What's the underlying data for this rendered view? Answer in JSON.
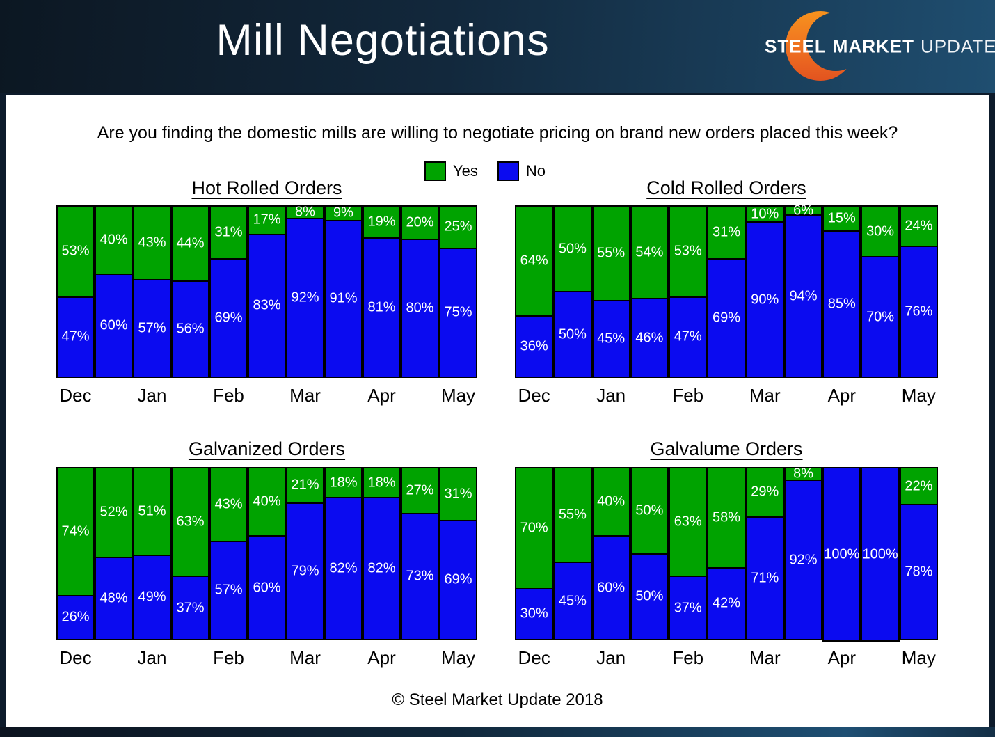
{
  "header": {
    "title": "Mill Negotiations",
    "logo": {
      "steel": "STEEL",
      "market": "MARKET",
      "update": "UPDATE"
    }
  },
  "question": "Are you finding the domestic mills are willing to negotiate pricing on brand new orders placed this week?",
  "legend": {
    "yes_label": "Yes",
    "no_label": "No"
  },
  "colors": {
    "yes": "#00a300",
    "no": "#0b0bf0",
    "bar_border": "#000000",
    "header_dark": "#0c1722",
    "header_light": "#1f4e70",
    "crescent_top": "#f6921e",
    "crescent_bottom": "#e2531f"
  },
  "months": [
    "Dec",
    "Jan",
    "Feb",
    "Mar",
    "Apr",
    "May"
  ],
  "footer": "© Steel Market Update 2018",
  "chart_data": [
    {
      "type": "bar",
      "stacked": true,
      "title": "Hot Rolled Orders",
      "x_axis_labels": [
        "Dec",
        "Jan",
        "Feb",
        "Mar",
        "Apr",
        "May"
      ],
      "bars": 11,
      "unit": "%",
      "ylim": [
        0,
        100
      ],
      "series": [
        {
          "name": "Yes",
          "color": "#00a300",
          "values": [
            53,
            40,
            43,
            44,
            31,
            17,
            8,
            9,
            19,
            20,
            25
          ]
        },
        {
          "name": "No",
          "color": "#0b0bf0",
          "values": [
            47,
            60,
            57,
            56,
            69,
            83,
            92,
            91,
            81,
            80,
            75
          ]
        }
      ]
    },
    {
      "type": "bar",
      "stacked": true,
      "title": "Cold Rolled Orders",
      "x_axis_labels": [
        "Dec",
        "Jan",
        "Feb",
        "Mar",
        "Apr",
        "May"
      ],
      "bars": 11,
      "unit": "%",
      "ylim": [
        0,
        100
      ],
      "series": [
        {
          "name": "Yes",
          "color": "#00a300",
          "values": [
            64,
            50,
            55,
            54,
            53,
            31,
            10,
            6,
            15,
            30,
            24
          ]
        },
        {
          "name": "No",
          "color": "#0b0bf0",
          "values": [
            36,
            50,
            45,
            46,
            47,
            69,
            90,
            94,
            85,
            70,
            76
          ]
        }
      ]
    },
    {
      "type": "bar",
      "stacked": true,
      "title": "Galvanized Orders",
      "x_axis_labels": [
        "Dec",
        "Jan",
        "Feb",
        "Mar",
        "Apr",
        "May"
      ],
      "bars": 11,
      "unit": "%",
      "ylim": [
        0,
        100
      ],
      "series": [
        {
          "name": "Yes",
          "color": "#00a300",
          "values": [
            74,
            52,
            51,
            63,
            43,
            40,
            21,
            18,
            18,
            27,
            31
          ]
        },
        {
          "name": "No",
          "color": "#0b0bf0",
          "values": [
            26,
            48,
            49,
            37,
            57,
            60,
            79,
            82,
            82,
            73,
            69
          ]
        }
      ]
    },
    {
      "type": "bar",
      "stacked": true,
      "title": "Galvalume Orders",
      "x_axis_labels": [
        "Dec",
        "Jan",
        "Feb",
        "Mar",
        "Apr",
        "May"
      ],
      "bars": 11,
      "unit": "%",
      "ylim": [
        0,
        100
      ],
      "series": [
        {
          "name": "Yes",
          "color": "#00a300",
          "values": [
            70,
            55,
            40,
            50,
            63,
            58,
            29,
            8,
            0,
            0,
            22
          ]
        },
        {
          "name": "No",
          "color": "#0b0bf0",
          "values": [
            30,
            45,
            60,
            50,
            37,
            42,
            71,
            92,
            100,
            100,
            78
          ]
        }
      ]
    }
  ]
}
